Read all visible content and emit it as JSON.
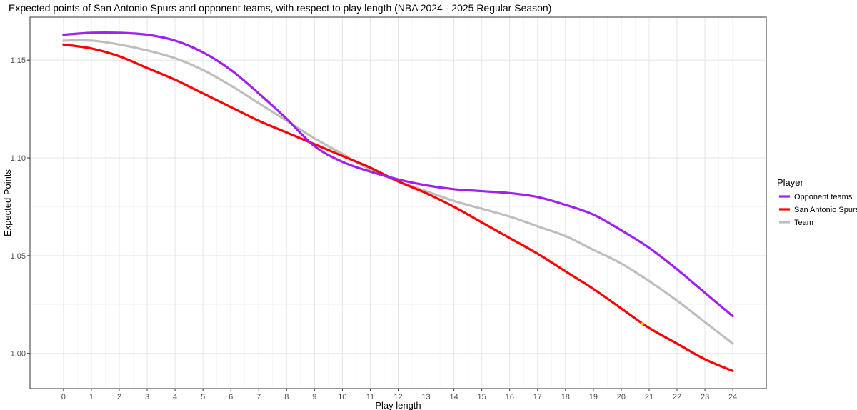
{
  "chart_data": {
    "type": "line",
    "title": "Expected points of San Antonio Spurs and opponent teams, with respect to play length (NBA 2024 - 2025 Regular Season)",
    "xlabel": "Play length",
    "ylabel": "Expected Points",
    "xlim": [
      -1.2,
      25.2
    ],
    "ylim": [
      0.982,
      1.172
    ],
    "x_ticks": [
      0,
      1,
      2,
      3,
      4,
      5,
      6,
      7,
      8,
      9,
      10,
      11,
      12,
      13,
      14,
      15,
      16,
      17,
      18,
      19,
      20,
      21,
      22,
      23,
      24
    ],
    "y_ticks": [
      1.0,
      1.05,
      1.1,
      1.15
    ],
    "y_tick_labels": [
      "1.00",
      "1.05",
      "1.10",
      "1.15"
    ],
    "grid": true,
    "legend": {
      "title": "Player",
      "position": "right"
    },
    "x": [
      0,
      1,
      2,
      3,
      4,
      5,
      6,
      7,
      8,
      9,
      10,
      11,
      12,
      13,
      14,
      15,
      16,
      17,
      18,
      19,
      20,
      21,
      22,
      23,
      24
    ],
    "series": [
      {
        "name": "Opponent teams",
        "color": "#a020f0",
        "values": [
          1.163,
          1.164,
          1.164,
          1.163,
          1.16,
          1.154,
          1.145,
          1.133,
          1.12,
          1.106,
          1.098,
          1.093,
          1.089,
          1.086,
          1.084,
          1.083,
          1.082,
          1.08,
          1.076,
          1.071,
          1.063,
          1.054,
          1.043,
          1.031,
          1.019
        ]
      },
      {
        "name": "San Antonio Spurs",
        "color": "#ff0000",
        "values": [
          1.158,
          1.156,
          1.152,
          1.146,
          1.14,
          1.133,
          1.126,
          1.119,
          1.113,
          1.107,
          1.101,
          1.095,
          1.088,
          1.082,
          1.075,
          1.067,
          1.059,
          1.051,
          1.042,
          1.033,
          1.023,
          1.013,
          1.005,
          0.997,
          0.991
        ]
      },
      {
        "name": "Team",
        "color": "#bebebe",
        "values": [
          1.16,
          1.16,
          1.158,
          1.155,
          1.151,
          1.145,
          1.137,
          1.128,
          1.119,
          1.11,
          1.102,
          1.094,
          1.088,
          1.083,
          1.078,
          1.074,
          1.07,
          1.065,
          1.06,
          1.053,
          1.046,
          1.037,
          1.027,
          1.016,
          1.005
        ]
      }
    ],
    "annotations": [
      {
        "x": 20.75,
        "y": 1.015,
        "color": "#ffd700",
        "shape": "point"
      }
    ]
  }
}
